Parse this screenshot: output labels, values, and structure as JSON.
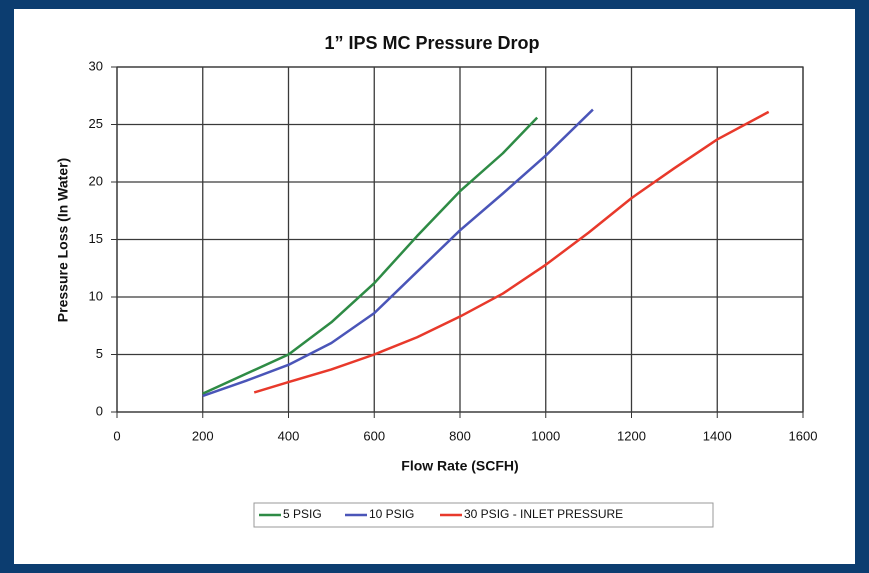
{
  "chart_data": {
    "type": "line",
    "title": "1” IPS MC  Pressure Drop",
    "x_label": "Flow Rate (SCFH)",
    "y_label": "Pressure Loss (In Water)",
    "xlim": [
      0,
      1600
    ],
    "xticks": [
      0,
      200,
      400,
      600,
      800,
      1000,
      1200,
      1400,
      1600
    ],
    "ylim": [
      0,
      30
    ],
    "yticks": [
      0,
      5,
      10,
      15,
      20,
      25,
      30
    ],
    "grid": true,
    "series": [
      {
        "name": "5 PSIG",
        "color": "#2e8b45",
        "x": [
          200,
          300,
          400,
          500,
          600,
          700,
          800,
          900,
          980
        ],
        "values": [
          1.6,
          3.3,
          5,
          7.8,
          11.2,
          15.3,
          19.2,
          22.5,
          25.6
        ]
      },
      {
        "name": "10 PSIG",
        "color": "#4a55b8",
        "x": [
          200,
          300,
          400,
          500,
          600,
          700,
          800,
          900,
          1000,
          1110
        ],
        "values": [
          1.4,
          2.7,
          4.1,
          6,
          8.6,
          12.2,
          15.8,
          19,
          22.3,
          26.3
        ]
      },
      {
        "name": "30 PSIG - INLET PRESSURE",
        "color": "#e8392b",
        "x": [
          320,
          400,
          500,
          600,
          700,
          800,
          900,
          1000,
          1100,
          1200,
          1300,
          1400,
          1520
        ],
        "values": [
          1.7,
          2.6,
          3.7,
          5,
          6.5,
          8.3,
          10.3,
          12.8,
          15.6,
          18.6,
          21.2,
          23.7,
          26.1
        ]
      }
    ]
  }
}
